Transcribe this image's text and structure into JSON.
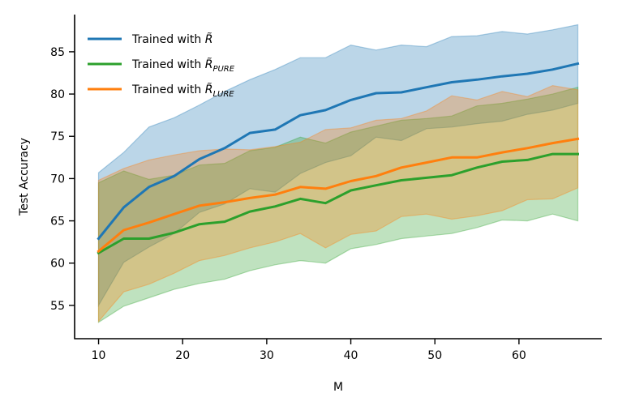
{
  "chart_data": {
    "type": "line",
    "xlabel": "M",
    "ylabel": "Test Accuracy",
    "xlim": [
      7.15,
      69.85
    ],
    "ylim": [
      51.06,
      89.4
    ],
    "xticks": [
      10,
      20,
      30,
      40,
      50,
      60
    ],
    "yticks": [
      55,
      60,
      65,
      70,
      75,
      80,
      85
    ],
    "x": [
      10,
      13,
      16,
      19,
      22,
      25,
      28,
      31,
      34,
      37,
      40,
      43,
      46,
      49,
      52,
      55,
      58,
      61,
      64,
      67
    ],
    "series": [
      {
        "name": "Trained with R̃",
        "legend_main": "Trained with ",
        "legend_symbol": "R̃",
        "legend_subscript": "",
        "color": "#1f77b4",
        "values": [
          62.9,
          66.6,
          69.0,
          70.3,
          72.3,
          73.6,
          75.4,
          75.8,
          77.5,
          78.1,
          79.3,
          80.1,
          80.2,
          80.8,
          81.4,
          81.7,
          82.1,
          82.4,
          82.9,
          83.6
        ],
        "upper": [
          70.7,
          73.1,
          76.1,
          77.2,
          78.7,
          80.3,
          81.7,
          82.9,
          84.3,
          84.3,
          85.8,
          85.2,
          85.8,
          85.6,
          86.8,
          86.9,
          87.4,
          87.1,
          87.6,
          88.2
        ],
        "lower": [
          55.0,
          60.1,
          61.9,
          63.5,
          66.0,
          67.0,
          68.8,
          68.4,
          70.6,
          71.9,
          72.7,
          74.9,
          74.5,
          75.9,
          76.1,
          76.5,
          76.8,
          77.6,
          78.1,
          78.9
        ]
      },
      {
        "name": "Trained with R̃_PURE",
        "legend_main": "Trained with ",
        "legend_symbol": "R̃",
        "legend_subscript": "PURE",
        "color": "#2ca02c",
        "values": [
          61.2,
          62.9,
          62.9,
          63.6,
          64.6,
          64.9,
          66.1,
          66.7,
          67.6,
          67.1,
          68.6,
          69.2,
          69.8,
          70.1,
          70.4,
          71.3,
          72.0,
          72.2,
          72.9,
          72.9
        ],
        "upper": [
          69.5,
          70.9,
          69.9,
          70.4,
          71.6,
          71.8,
          73.3,
          73.7,
          74.9,
          74.2,
          75.5,
          76.2,
          76.9,
          77.1,
          77.4,
          78.6,
          78.9,
          79.4,
          80.0,
          80.8
        ],
        "lower": [
          53.0,
          54.9,
          55.9,
          56.9,
          57.6,
          58.1,
          59.1,
          59.8,
          60.3,
          60.0,
          61.7,
          62.2,
          62.9,
          63.2,
          63.5,
          64.2,
          65.1,
          65.0,
          65.8,
          65.0
        ]
      },
      {
        "name": "Trained with R̃_LURE",
        "legend_main": "Trained with ",
        "legend_symbol": "R̃",
        "legend_subscript": "LURE",
        "color": "#ff7f0e",
        "values": [
          61.4,
          63.9,
          64.8,
          65.8,
          66.8,
          67.2,
          67.7,
          68.1,
          69.0,
          68.8,
          69.7,
          70.3,
          71.3,
          71.9,
          72.5,
          72.5,
          73.1,
          73.6,
          74.2,
          74.7
        ],
        "upper": [
          69.8,
          71.2,
          72.2,
          72.8,
          73.3,
          73.5,
          73.4,
          73.8,
          74.3,
          75.8,
          76.0,
          76.9,
          77.1,
          78.0,
          79.8,
          79.3,
          80.3,
          79.7,
          81.0,
          80.5
        ],
        "lower": [
          53.1,
          56.6,
          57.5,
          58.8,
          60.3,
          60.9,
          61.8,
          62.5,
          63.5,
          61.8,
          63.4,
          63.8,
          65.5,
          65.8,
          65.2,
          65.6,
          66.2,
          67.5,
          67.6,
          68.9
        ]
      }
    ]
  }
}
